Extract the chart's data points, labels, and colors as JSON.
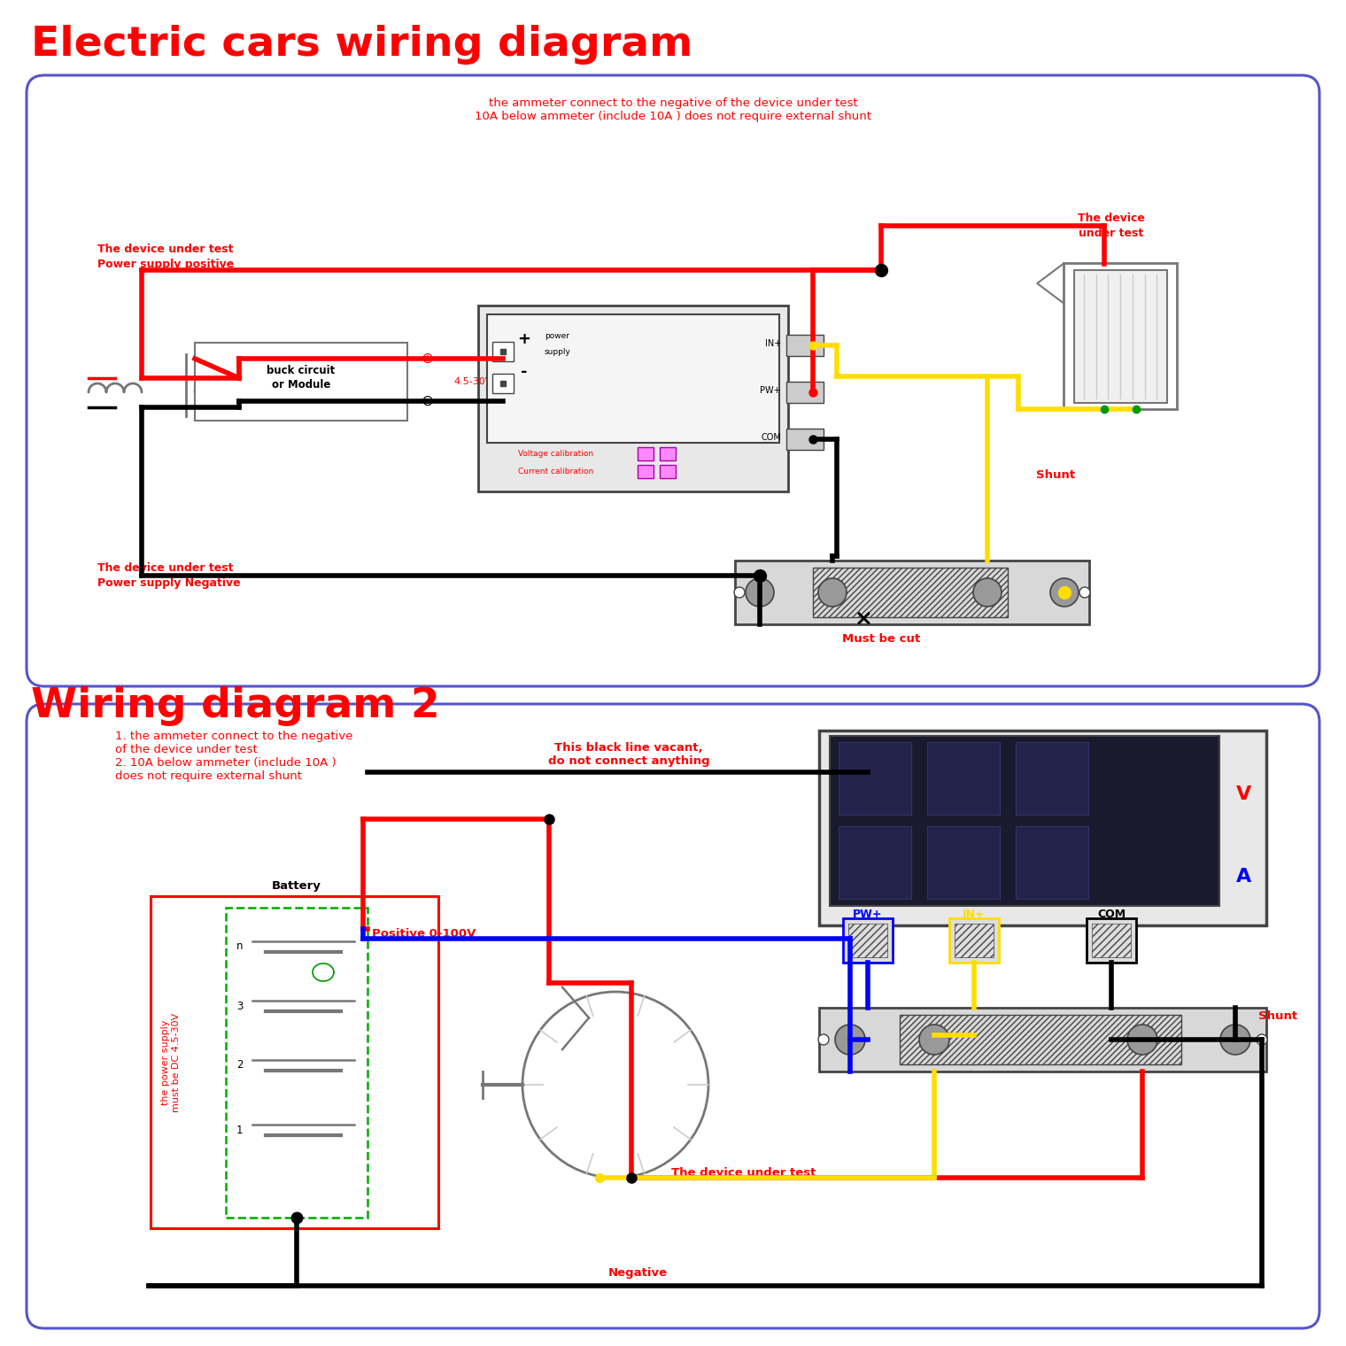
{
  "title1": "Electric cars wiring diagram",
  "title2": "Wiring diagram 2",
  "title_color": "#ff0000",
  "title_fontsize": 34,
  "bg_color": "#ffffff",
  "d1_note": "the ammeter connect to the negative of the device under test\n10A below ammeter (include 10A ) does not require external shunt",
  "d1_pos_label": "The device under test\nPower supply positive",
  "d1_device_label": "The device\nunder test",
  "d1_buck_label": "buck circuit\nor Module",
  "d1_volt_label": "4.5-30V",
  "d1_neg_label": "The device under test\nPower supply Negative",
  "d1_shunt_label": "Shunt",
  "d1_cut_label": "Must be cut",
  "d1_vcal": "Voltage calibration",
  "d1_ccal": "Current calibration",
  "d1_ps_plus": "+ power\nsupply",
  "d2_note": "1. the ammeter connect to the negative\nof the device under test\n2. 10A below ammeter (include 10A )\ndoes not require external shunt",
  "d2_black_vacant": "This black line vacant,\ndo not connect anything",
  "d2_pos": "Positive 0-100V",
  "d2_battery": "Battery",
  "d2_pslabel": "the power supply\nmust be DC 4.5-30V",
  "d2_neg": "Negative",
  "d2_device": "The device under test",
  "d2_shunt": "Shunt",
  "d2_pw": "PW+",
  "d2_in": "IN+",
  "d2_com": "COM",
  "red": "#ff0000",
  "black": "#000000",
  "yellow": "#ffdd00",
  "blue": "#0000ff",
  "gray": "#777777",
  "lgray": "#cccccc",
  "dgray": "#444444",
  "border_color": "#5555cc",
  "green": "#009900",
  "lw_wire": 4.0
}
